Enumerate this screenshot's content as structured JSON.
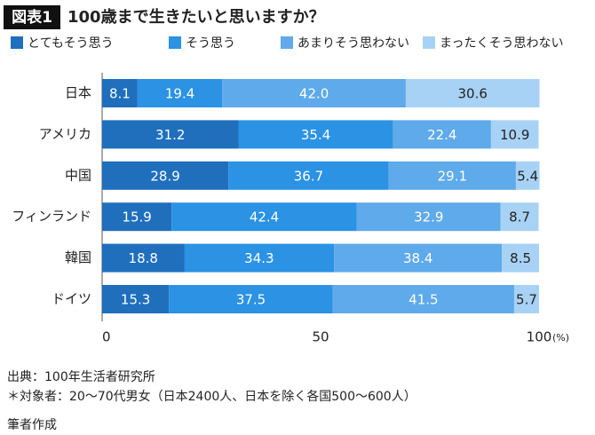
{
  "chart_data": {
    "type": "stacked-barh",
    "label": "図表1",
    "title": "100歳まで生きたいと思いますか？",
    "categories": [
      "日本",
      "アメリカ",
      "中国",
      "フィンランド",
      "韓国",
      "ドイツ"
    ],
    "series": [
      {
        "name": "とてもそう思う",
        "color": "#1f6fbd",
        "values": [
          8.1,
          31.2,
          28.9,
          15.9,
          18.8,
          15.3
        ]
      },
      {
        "name": "そう思う",
        "color": "#2b92e4",
        "values": [
          19.4,
          35.4,
          36.7,
          42.4,
          34.3,
          37.5
        ]
      },
      {
        "name": "あまりそう思わない",
        "color": "#5eaaea",
        "values": [
          42,
          22.4,
          29.1,
          32.9,
          38.4,
          41.5
        ],
        "value_labels": [
          "42.0",
          "22.4",
          "29.1",
          "32.9",
          "38.4",
          "41.5"
        ]
      },
      {
        "name": "まったくそう思わない",
        "color": "#a8d2f5",
        "values": [
          30.6,
          10.9,
          5.4,
          8.7,
          8.5,
          5.7
        ]
      }
    ],
    "xlim": [
      0,
      100
    ],
    "xticks": [
      0,
      50,
      100
    ],
    "x_label": "(%)",
    "notes": [
      "出典：100年生活者研究所",
      "＊対象者：20～70代男女（日本2400人、日本を除く各国500～600人）",
      "筆者作成"
    ]
  }
}
